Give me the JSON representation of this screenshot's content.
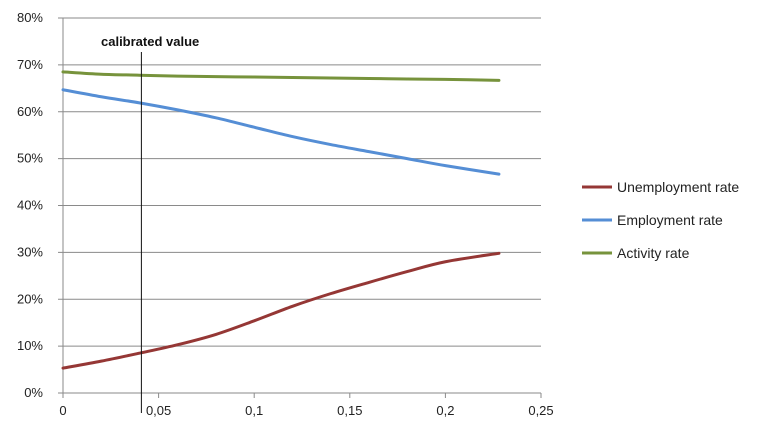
{
  "chart_data": {
    "type": "line",
    "title": "",
    "xlabel": "",
    "ylabel": "",
    "xlim": [
      0,
      0.25
    ],
    "ylim": [
      0,
      80
    ],
    "x_ticks": [
      0,
      0.05,
      0.1,
      0.15,
      0.2,
      0.25
    ],
    "x_tick_labels": [
      "0",
      "0,05",
      "0,1",
      "0,15",
      "0,2",
      "0,25"
    ],
    "y_ticks": [
      0,
      10,
      20,
      30,
      40,
      50,
      60,
      70,
      80
    ],
    "y_tick_labels": [
      "0%",
      "10%",
      "20%",
      "30%",
      "40%",
      "50%",
      "60%",
      "70%",
      "80%"
    ],
    "grid": "horizontal",
    "legend_position": "right",
    "series": [
      {
        "name": "Unemployment rate",
        "color": "#953735",
        "x": [
          0,
          0.02,
          0.04,
          0.06,
          0.08,
          0.1,
          0.12,
          0.14,
          0.16,
          0.18,
          0.2,
          0.228
        ],
        "values": [
          5.3,
          6.8,
          8.5,
          10.3,
          12.5,
          15.4,
          18.5,
          21.2,
          23.6,
          25.9,
          28.0,
          29.8
        ]
      },
      {
        "name": "Employment rate",
        "color": "#558ED5",
        "x": [
          0,
          0.02,
          0.04,
          0.06,
          0.08,
          0.1,
          0.12,
          0.14,
          0.16,
          0.18,
          0.2,
          0.228
        ],
        "values": [
          64.7,
          63.2,
          61.9,
          60.4,
          58.7,
          56.7,
          54.7,
          53.0,
          51.5,
          50.0,
          48.5,
          46.7
        ]
      },
      {
        "name": "Activity rate",
        "color": "#77933C",
        "x": [
          0,
          0.02,
          0.04,
          0.06,
          0.08,
          0.1,
          0.12,
          0.14,
          0.16,
          0.18,
          0.2,
          0.228
        ],
        "values": [
          68.5,
          68.0,
          67.8,
          67.6,
          67.5,
          67.4,
          67.3,
          67.2,
          67.1,
          67.0,
          66.9,
          66.7
        ]
      }
    ],
    "annotations": [
      {
        "label": "calibrated value",
        "x": 0.041
      }
    ]
  }
}
